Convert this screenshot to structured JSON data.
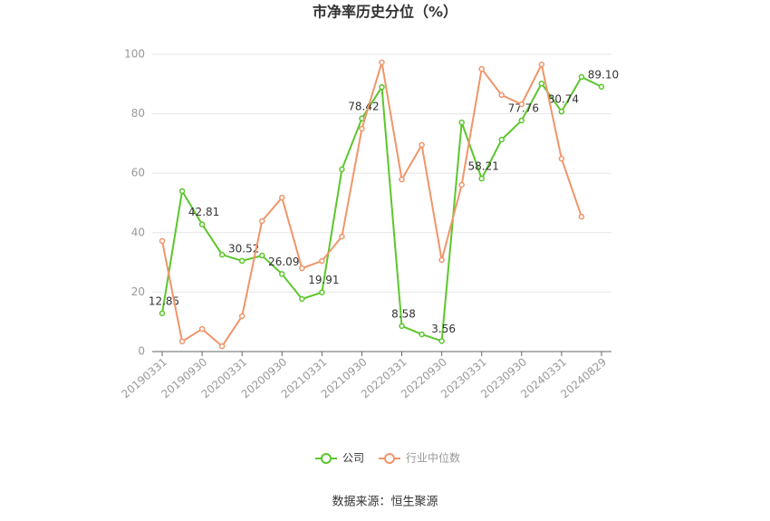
{
  "chart_data": {
    "type": "line",
    "title": "市净率历史分位（%）",
    "source": "数据来源：恒生聚源",
    "categories": [
      "20190331",
      null,
      "20190930",
      null,
      "20200331",
      null,
      "20200930",
      null,
      "20210331",
      null,
      "20210930",
      null,
      "20220331",
      null,
      "20220930",
      null,
      "20230331",
      null,
      "20230930",
      null,
      "20240331",
      null,
      "20240829"
    ],
    "ylim": [
      0,
      100
    ],
    "yticks": [
      0,
      20,
      40,
      60,
      80,
      100
    ],
    "grid": true,
    "legend": "bottom",
    "series": [
      {
        "name": "公司",
        "color": "#5cc62c",
        "values": [
          12.85,
          54.0,
          42.81,
          32.6,
          30.52,
          32.3,
          26.09,
          17.7,
          19.91,
          61.3,
          78.42,
          89.0,
          8.58,
          5.8,
          3.56,
          77.1,
          58.21,
          71.3,
          77.76,
          90.2,
          80.74,
          92.4,
          89.1
        ],
        "value_labels": [
          "12.85",
          null,
          "42.81",
          null,
          "30.52",
          null,
          "26.09",
          null,
          "19.91",
          null,
          "78.42",
          null,
          "8.58",
          null,
          "3.56",
          null,
          "58.21",
          null,
          "77.76",
          null,
          "80.74",
          null,
          "89.10"
        ]
      },
      {
        "name": "行业中位数",
        "color": "#f0956a",
        "values": [
          37.2,
          3.4,
          7.6,
          1.8,
          11.9,
          43.9,
          51.8,
          28.0,
          30.5,
          38.7,
          75.0,
          97.3,
          57.9,
          69.5,
          30.8,
          56.1,
          95.1,
          86.3,
          83.2,
          96.6,
          64.9,
          45.4,
          null
        ]
      }
    ]
  }
}
